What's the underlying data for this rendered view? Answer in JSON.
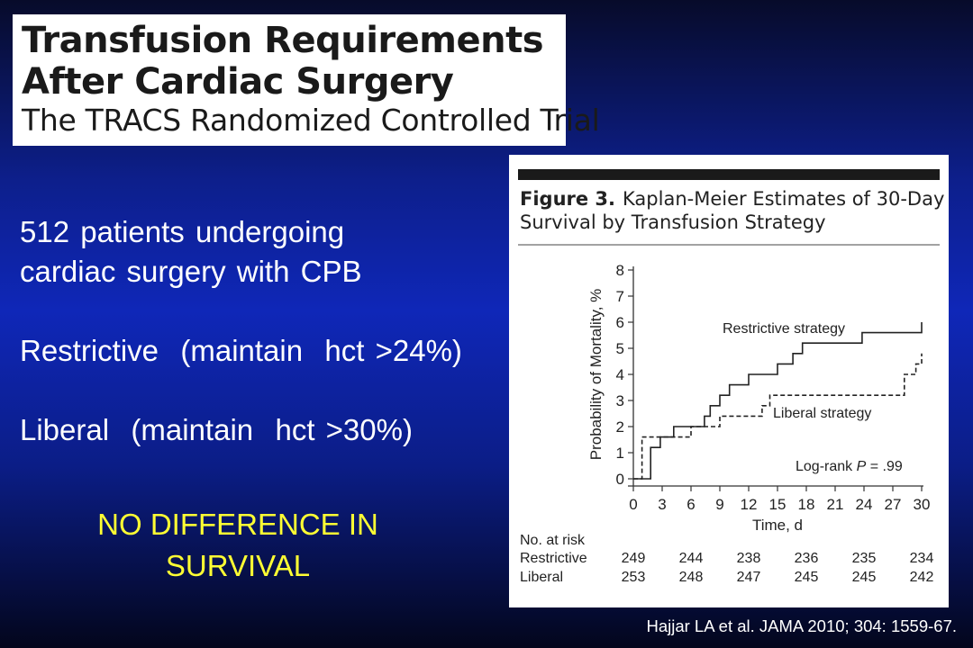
{
  "slide": {
    "title_line1": "Transfusion Requirements",
    "title_line2": "After Cardiac Surgery",
    "title_line3": "The TRACS Randomized Controlled Trial",
    "bullet1_line1": "512 patients undergoing",
    "bullet1_line2": "cardiac surgery with CPB",
    "bullet2": "Restrictive  (maintain  hct >24%)",
    "bullet3": "Liberal  (maintain  hct >30%)",
    "conclusion_line1": "NO DIFFERENCE IN",
    "conclusion_line2": "SURVIVAL",
    "citation": "Hajjar LA et al. JAMA 2010; 304: 1559-67."
  },
  "figure": {
    "label": "Figure 3.",
    "caption_line1": "Kaplan-Meier Estimates of 30-Day",
    "caption_line2": "Survival by Transfusion Strategy",
    "logrank_prefix": "Log-rank ",
    "logrank_p": "P",
    "logrank_suffix": " = .99",
    "risk_table": {
      "header": "No. at risk",
      "rows": [
        {
          "label": "Restrictive",
          "values": [
            "249",
            "244",
            "238",
            "236",
            "235",
            "234"
          ]
        },
        {
          "label": "Liberal",
          "values": [
            "253",
            "248",
            "247",
            "245",
            "245",
            "242"
          ]
        }
      ]
    }
  },
  "chart_data": {
    "type": "line",
    "step": true,
    "title": "",
    "xlabel": "Time, d",
    "ylabel": "Probability of Mortality, %",
    "xlim": [
      0,
      30
    ],
    "ylim": [
      0,
      8
    ],
    "xticks": [
      0,
      3,
      6,
      9,
      12,
      15,
      18,
      21,
      24,
      27,
      30
    ],
    "yticks": [
      0,
      1,
      2,
      3,
      4,
      5,
      6,
      7,
      8
    ],
    "grid": false,
    "series": [
      {
        "name": "Restrictive strategy",
        "style": "solid",
        "color": "#222222",
        "points": [
          [
            0,
            0
          ],
          [
            1.8,
            0
          ],
          [
            1.8,
            1.2
          ],
          [
            2.8,
            1.2
          ],
          [
            2.8,
            1.6
          ],
          [
            4.2,
            1.6
          ],
          [
            4.2,
            2.0
          ],
          [
            7.4,
            2.0
          ],
          [
            7.4,
            2.4
          ],
          [
            8.0,
            2.4
          ],
          [
            8.0,
            2.8
          ],
          [
            9.0,
            2.8
          ],
          [
            9.0,
            3.2
          ],
          [
            10.0,
            3.2
          ],
          [
            10.0,
            3.6
          ],
          [
            12.0,
            3.6
          ],
          [
            12.0,
            4.0
          ],
          [
            15.0,
            4.0
          ],
          [
            15.0,
            4.4
          ],
          [
            16.6,
            4.4
          ],
          [
            16.6,
            4.8
          ],
          [
            17.6,
            4.8
          ],
          [
            17.6,
            5.2
          ],
          [
            23.8,
            5.2
          ],
          [
            23.8,
            5.6
          ],
          [
            30,
            5.6
          ],
          [
            30,
            6.0
          ]
        ]
      },
      {
        "name": "Liberal strategy",
        "style": "dashed",
        "color": "#222222",
        "points": [
          [
            0,
            0
          ],
          [
            0.9,
            0
          ],
          [
            0.9,
            1.6
          ],
          [
            6.0,
            1.6
          ],
          [
            6.0,
            2.0
          ],
          [
            9.0,
            2.0
          ],
          [
            9.0,
            2.4
          ],
          [
            13.4,
            2.4
          ],
          [
            13.4,
            2.8
          ],
          [
            14.2,
            2.8
          ],
          [
            14.2,
            3.2
          ],
          [
            28.2,
            3.2
          ],
          [
            28.2,
            4.0
          ],
          [
            29.4,
            4.0
          ],
          [
            29.4,
            4.4
          ],
          [
            30,
            4.4
          ],
          [
            30,
            4.8
          ]
        ]
      }
    ]
  }
}
